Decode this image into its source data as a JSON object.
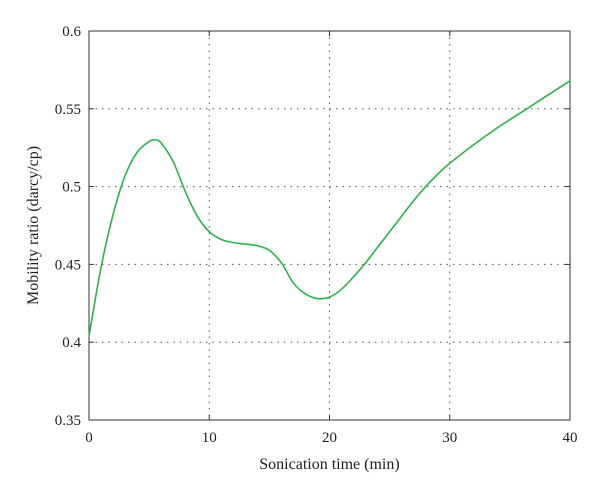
{
  "chart_data": {
    "type": "line",
    "title": "",
    "xlabel": "Sonication time (min)",
    "ylabel": "Mobility ratio (darcy/cp)",
    "xlim": [
      0,
      40
    ],
    "ylim": [
      0.35,
      0.6
    ],
    "xticks": [
      0,
      10,
      20,
      30,
      40
    ],
    "xtick_labels": [
      "0",
      "10",
      "20",
      "30",
      "40"
    ],
    "yticks": [
      0.35,
      0.4,
      0.45,
      0.5,
      0.55,
      0.6
    ],
    "ytick_labels": [
      "0.35",
      "0.4",
      "0.45",
      "0.5",
      "0.55",
      "0.6"
    ],
    "grid": true,
    "legend": "none",
    "colors": {
      "series": "#2db34a",
      "grid": "#555555",
      "frame": "#333333"
    },
    "series": [
      {
        "x": [
          0,
          1,
          2,
          3,
          4,
          5,
          5.5,
          6,
          7,
          8,
          9,
          10,
          11,
          12,
          13,
          14,
          15,
          16,
          17,
          18,
          19,
          20,
          21,
          22,
          23,
          24,
          25,
          26,
          27,
          28,
          29,
          30,
          32,
          34,
          36,
          38,
          40
        ],
        "y": [
          0.404,
          0.448,
          0.482,
          0.507,
          0.522,
          0.529,
          0.53,
          0.528,
          0.516,
          0.497,
          0.481,
          0.471,
          0.466,
          0.464,
          0.463,
          0.462,
          0.459,
          0.451,
          0.438,
          0.431,
          0.428,
          0.429,
          0.434,
          0.442,
          0.451,
          0.461,
          0.471,
          0.481,
          0.491,
          0.5,
          0.508,
          0.515,
          0.527,
          0.538,
          0.548,
          0.558,
          0.568
        ]
      }
    ]
  }
}
